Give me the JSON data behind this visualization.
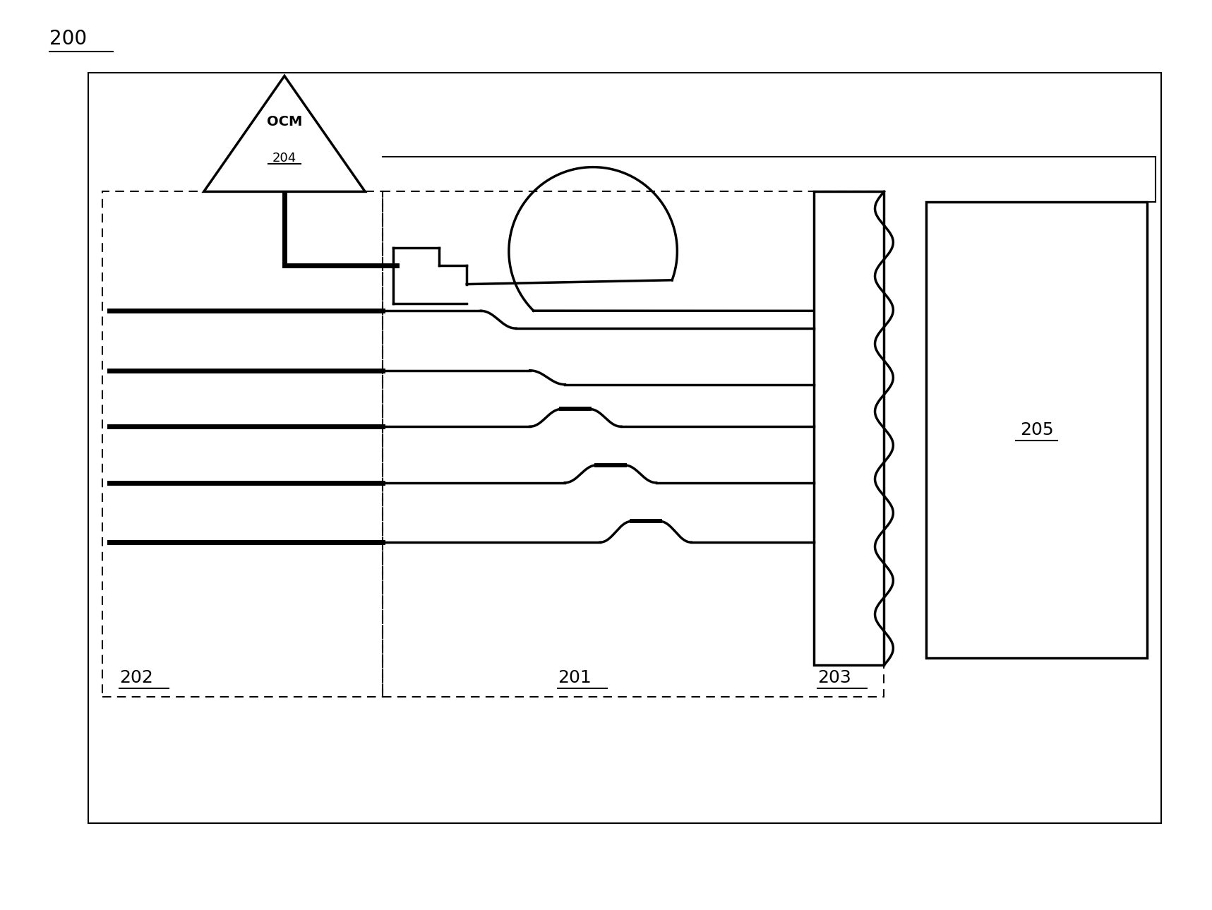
{
  "bg_color": "#ffffff",
  "line_color": "#000000",
  "fig_label": "200",
  "label_202": "202",
  "label_201": "201",
  "label_203": "203",
  "label_205": "205",
  "font_size_labels": 18,
  "font_size_fig": 20
}
